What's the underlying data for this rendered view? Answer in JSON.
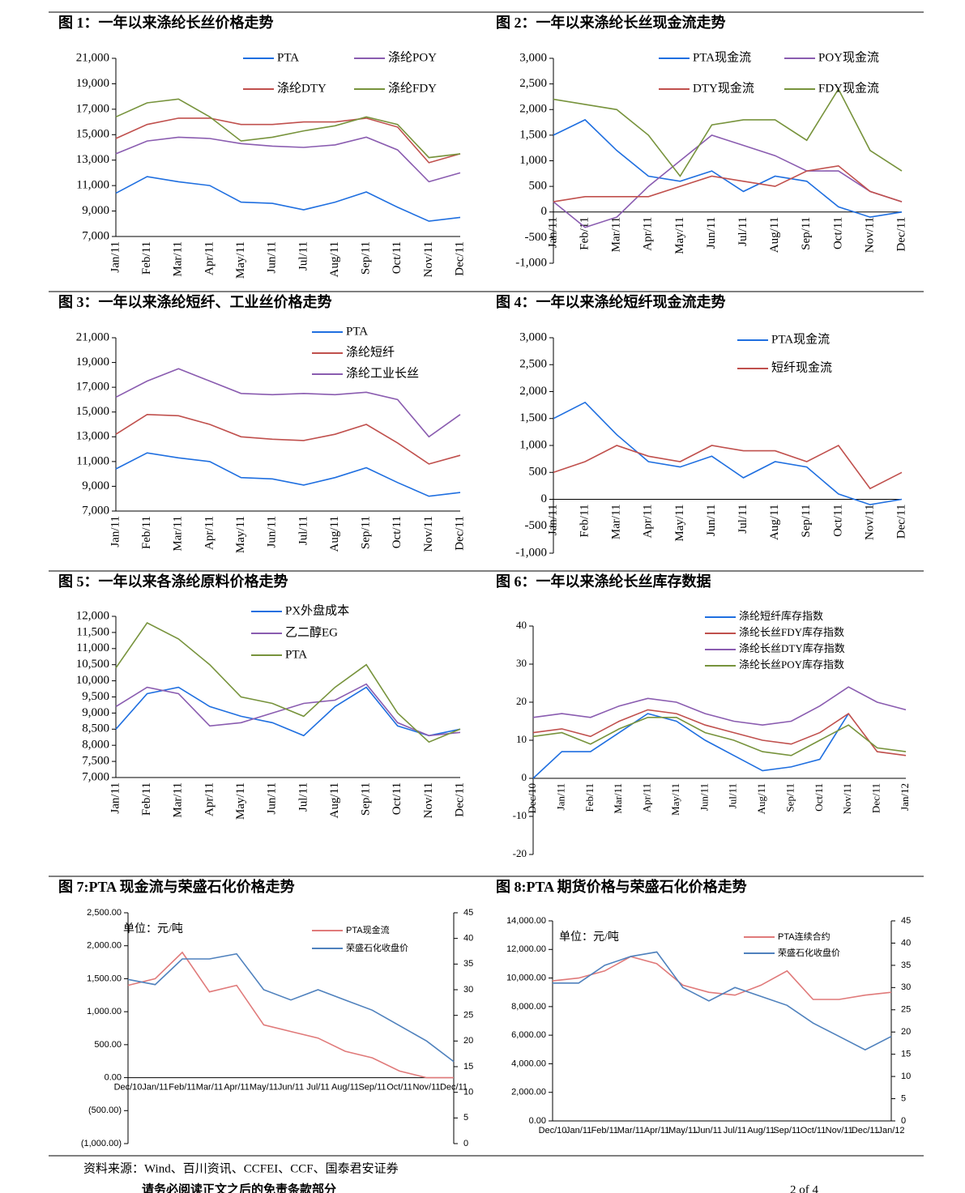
{
  "chart_data": [
    {
      "type": "line",
      "title": "图 1：一年以来涤纶长丝价格走势",
      "categories": [
        "Jan/11",
        "Feb/11",
        "Mar/11",
        "Apr/11",
        "May/11",
        "Jun/11",
        "Jul/11",
        "Aug/11",
        "Sep/11",
        "Oct/11",
        "Nov/11",
        "Dec/11"
      ],
      "ylim": [
        7000,
        21000
      ],
      "yticks": [
        {
          "value": 7000,
          "label": "7,000"
        },
        {
          "value": 9000,
          "label": "9,000"
        },
        {
          "value": 11000,
          "label": "11,000"
        },
        {
          "value": 13000,
          "label": "13,000"
        },
        {
          "value": 15000,
          "label": "15,000"
        },
        {
          "value": 17000,
          "label": "17,000"
        },
        {
          "value": 19000,
          "label": "19,000"
        },
        {
          "value": 21000,
          "label": "21,000"
        }
      ],
      "series": [
        {
          "name": "PTA",
          "color": "#1f6fe0",
          "values": [
            10400,
            11700,
            11300,
            11000,
            9700,
            9600,
            9100,
            9700,
            10500,
            9300,
            8200,
            8500
          ]
        },
        {
          "name": "涤纶POY",
          "color": "#8a5cb0",
          "values": [
            13500,
            14500,
            14800,
            14700,
            14300,
            14100,
            14000,
            14200,
            14800,
            13800,
            11300,
            12000
          ]
        },
        {
          "name": "涤纶DTY",
          "color": "#c0504d",
          "values": [
            14700,
            15800,
            16300,
            16300,
            15800,
            15800,
            16000,
            16000,
            16300,
            15600,
            12800,
            13500
          ]
        },
        {
          "name": "涤纶FDY",
          "color": "#77933c",
          "values": [
            16400,
            17500,
            17800,
            16400,
            14500,
            14800,
            15300,
            15700,
            16400,
            15800,
            13200,
            13500
          ]
        }
      ]
    },
    {
      "type": "line",
      "title": "图 2：一年以来涤纶长丝现金流走势",
      "categories": [
        "Jan/11",
        "Feb/11",
        "Mar/11",
        "Apr/11",
        "May/11",
        "Jun/11",
        "Jul/11",
        "Aug/11",
        "Sep/11",
        "Oct/11",
        "Nov/11",
        "Dec/11"
      ],
      "ylim": [
        -1000,
        3000
      ],
      "negative_tick_color": "#ff0000",
      "yticks": [
        {
          "value": -1000,
          "label": "-1,000"
        },
        -500,
        0,
        500,
        {
          "value": 1000,
          "label": "1,000"
        },
        {
          "value": 1500,
          "label": "1,500"
        },
        {
          "value": 2000,
          "label": "2,000"
        },
        {
          "value": 2500,
          "label": "2,500"
        },
        {
          "value": 3000,
          "label": "3,000"
        }
      ],
      "series": [
        {
          "name": "PTA现金流",
          "color": "#1f6fe0",
          "values": [
            1500,
            1800,
            1200,
            700,
            600,
            800,
            400,
            700,
            600,
            100,
            -100,
            0
          ]
        },
        {
          "name": "POY现金流",
          "color": "#8a5cb0",
          "values": [
            200,
            -300,
            -100,
            500,
            1000,
            1500,
            1300,
            1100,
            800,
            800,
            400,
            200
          ]
        },
        {
          "name": "DTY现金流",
          "color": "#c0504d",
          "values": [
            200,
            300,
            300,
            300,
            500,
            700,
            600,
            500,
            800,
            900,
            400,
            200
          ]
        },
        {
          "name": "FDY现金流",
          "color": "#77933c",
          "values": [
            2200,
            2100,
            2000,
            1500,
            700,
            1700,
            1800,
            1800,
            1400,
            2400,
            1200,
            800
          ]
        }
      ]
    },
    {
      "type": "line",
      "title": "图 3：一年以来涤纶短纤、工业丝价格走势",
      "categories": [
        "Jan/11",
        "Feb/11",
        "Mar/11",
        "Apr/11",
        "May/11",
        "Jun/11",
        "Jul/11",
        "Aug/11",
        "Sep/11",
        "Oct/11",
        "Nov/11",
        "Dec/11"
      ],
      "ylim": [
        7000,
        21000
      ],
      "yticks": [
        {
          "value": 7000,
          "label": "7,000"
        },
        {
          "value": 9000,
          "label": "9,000"
        },
        {
          "value": 11000,
          "label": "11,000"
        },
        {
          "value": 13000,
          "label": "13,000"
        },
        {
          "value": 15000,
          "label": "15,000"
        },
        {
          "value": 17000,
          "label": "17,000"
        },
        {
          "value": 19000,
          "label": "19,000"
        },
        {
          "value": 21000,
          "label": "21,000"
        }
      ],
      "series": [
        {
          "name": "PTA",
          "color": "#1f6fe0",
          "values": [
            10400,
            11700,
            11300,
            11000,
            9700,
            9600,
            9100,
            9700,
            10500,
            9300,
            8200,
            8500
          ]
        },
        {
          "name": "涤纶短纤",
          "color": "#c0504d",
          "values": [
            13200,
            14800,
            14700,
            14000,
            13000,
            12800,
            12700,
            13200,
            14000,
            12500,
            10800,
            11500
          ]
        },
        {
          "name": "涤纶工业长丝",
          "color": "#8a5cb0",
          "values": [
            16200,
            17500,
            18500,
            17500,
            16500,
            16400,
            16500,
            16400,
            16600,
            16000,
            13000,
            14800
          ]
        }
      ]
    },
    {
      "type": "line",
      "title": "图 4：一年以来涤纶短纤现金流走势",
      "categories": [
        "Jan/11",
        "Feb/11",
        "Mar/11",
        "Apr/11",
        "May/11",
        "Jun/11",
        "Jul/11",
        "Aug/11",
        "Sep/11",
        "Oct/11",
        "Nov/11",
        "Dec/11"
      ],
      "ylim": [
        -1000,
        3000
      ],
      "negative_tick_color": "#ff0000",
      "yticks": [
        {
          "value": -1000,
          "label": "-1,000"
        },
        -500,
        0,
        500,
        {
          "value": 1000,
          "label": "1,000"
        },
        {
          "value": 1500,
          "label": "1,500"
        },
        {
          "value": 2000,
          "label": "2,000"
        },
        {
          "value": 2500,
          "label": "2,500"
        },
        {
          "value": 3000,
          "label": "3,000"
        }
      ],
      "series": [
        {
          "name": "PTA现金流",
          "color": "#1f6fe0",
          "values": [
            1500,
            1800,
            1200,
            700,
            600,
            800,
            400,
            700,
            600,
            100,
            -100,
            0
          ]
        },
        {
          "name": "短纤现金流",
          "color": "#c0504d",
          "values": [
            500,
            700,
            1000,
            800,
            700,
            1000,
            900,
            900,
            700,
            1000,
            200,
            500
          ]
        }
      ]
    },
    {
      "type": "line",
      "title": "图 5：一年以来各涤纶原料价格走势",
      "categories": [
        "Jan/11",
        "Feb/11",
        "Mar/11",
        "Apr/11",
        "May/11",
        "Jun/11",
        "Jul/11",
        "Aug/11",
        "Sep/11",
        "Oct/11",
        "Nov/11",
        "Dec/11"
      ],
      "ylim": [
        7000,
        12000
      ],
      "yticks": [
        {
          "value": 7000,
          "label": "7,000"
        },
        {
          "value": 7500,
          "label": "7,500"
        },
        {
          "value": 8000,
          "label": "8,000"
        },
        {
          "value": 8500,
          "label": "8,500"
        },
        {
          "value": 9000,
          "label": "9,000"
        },
        {
          "value": 9500,
          "label": "9,500"
        },
        {
          "value": 10000,
          "label": "10,000"
        },
        {
          "value": 10500,
          "label": "10,500"
        },
        {
          "value": 11000,
          "label": "11,000"
        },
        {
          "value": 11500,
          "label": "11,500"
        },
        {
          "value": 12000,
          "label": "12,000"
        }
      ],
      "series": [
        {
          "name": "PX外盘成本",
          "color": "#1f6fe0",
          "values": [
            8500,
            9600,
            9800,
            9200,
            8900,
            8700,
            8300,
            9200,
            9800,
            8600,
            8300,
            8500
          ]
        },
        {
          "name": "乙二醇EG",
          "color": "#8a5cb0",
          "values": [
            9200,
            9800,
            9600,
            8600,
            8700,
            9000,
            9300,
            9400,
            9900,
            8700,
            8300,
            8400
          ]
        },
        {
          "name": "PTA",
          "color": "#77933c",
          "values": [
            10400,
            11800,
            11300,
            10500,
            9500,
            9300,
            8900,
            9800,
            10500,
            9000,
            8100,
            8500
          ]
        }
      ]
    },
    {
      "type": "line",
      "title": "图 6：一年以来涤纶长丝库存数据",
      "categories": [
        "Dec/10",
        "Jan/11",
        "Feb/11",
        "Mar/11",
        "Apr/11",
        "May/11",
        "Jun/11",
        "Jul/11",
        "Aug/11",
        "Sep/11",
        "Oct/11",
        "Nov/11",
        "Dec/11",
        "Jan/12"
      ],
      "ylim": [
        -20,
        40
      ],
      "negative_tick_color": "#ff0000",
      "yticks": [
        -20,
        -10,
        0,
        10,
        20,
        30,
        40
      ],
      "series": [
        {
          "name": "涤纶短纤库存指数",
          "color": "#1f6fe0",
          "values": [
            0,
            7,
            7,
            12,
            17,
            15,
            10,
            6,
            2,
            3,
            5,
            17,
            null,
            null
          ]
        },
        {
          "name": "涤纶长丝FDY库存指数",
          "color": "#c0504d",
          "values": [
            12,
            13,
            11,
            15,
            18,
            17,
            14,
            12,
            10,
            9,
            12,
            17,
            7,
            6
          ]
        },
        {
          "name": "涤纶长丝DTY库存指数",
          "color": "#8a5cb0",
          "values": [
            16,
            17,
            16,
            19,
            21,
            20,
            17,
            15,
            14,
            15,
            19,
            24,
            20,
            18
          ]
        },
        {
          "name": "涤纶长丝POY库存指数",
          "color": "#77933c",
          "values": [
            11,
            12,
            9,
            13,
            16,
            16,
            12,
            10,
            7,
            6,
            10,
            14,
            8,
            7
          ]
        }
      ]
    },
    {
      "type": "line",
      "title": "图 7:PTA 现金流与荣盛石化价格走势",
      "annotation": "单位：元/吨",
      "categories": [
        "Dec/10",
        "Jan/11",
        "Feb/11",
        "Mar/11",
        "Apr/11",
        "May/11",
        "Jun/11",
        "Jul/11",
        "Aug/11",
        "Sep/11",
        "Oct/11",
        "Nov/11",
        "Dec/11"
      ],
      "ylim": [
        -1000,
        2500
      ],
      "yticks": [
        {
          "value": -1000,
          "label": "(1,000.00)"
        },
        {
          "value": -500,
          "label": "(500.00)"
        },
        {
          "value": 0,
          "label": "0.00"
        },
        {
          "value": 500,
          "label": "500.00"
        },
        {
          "value": 1000,
          "label": "1,000.00"
        },
        {
          "value": 1500,
          "label": "1,500.00"
        },
        {
          "value": 2000,
          "label": "2,000.00"
        },
        {
          "value": 2500,
          "label": "2,500.00"
        }
      ],
      "y2lim": [
        0,
        45
      ],
      "y2ticks": [
        0,
        5,
        10,
        15,
        20,
        25,
        30,
        35,
        40,
        45
      ],
      "series": [
        {
          "name": "PTA现金流",
          "color": "#e07a7a",
          "values": [
            1400,
            1500,
            1900,
            1300,
            1400,
            800,
            700,
            600,
            400,
            300,
            100,
            0,
            0
          ]
        },
        {
          "name": "荣盛石化收盘价",
          "color": "#4f81bd",
          "axis": "y2",
          "values": [
            32,
            31,
            36,
            36,
            37,
            30,
            28,
            30,
            28,
            26,
            23,
            20,
            16
          ]
        }
      ]
    },
    {
      "type": "line",
      "title": "图 8:PTA 期货价格与荣盛石化价格走势",
      "annotation": "单位：元/吨",
      "categories": [
        "Dec/10",
        "Jan/11",
        "Feb/11",
        "Mar/11",
        "Apr/11",
        "May/11",
        "Jun/11",
        "Jul/11",
        "Aug/11",
        "Sep/11",
        "Oct/11",
        "Nov/11",
        "Dec/11",
        "Jan/12"
      ],
      "ylim": [
        0,
        14000
      ],
      "yticks": [
        {
          "value": 0,
          "label": "0.00"
        },
        {
          "value": 2000,
          "label": "2,000.00"
        },
        {
          "value": 4000,
          "label": "4,000.00"
        },
        {
          "value": 6000,
          "label": "6,000.00"
        },
        {
          "value": 8000,
          "label": "8,000.00"
        },
        {
          "value": 10000,
          "label": "10,000.00"
        },
        {
          "value": 12000,
          "label": "12,000.00"
        },
        {
          "value": 14000,
          "label": "14,000.00"
        }
      ],
      "y2lim": [
        0,
        45
      ],
      "y2ticks": [
        0,
        5,
        10,
        15,
        20,
        25,
        30,
        35,
        40,
        45
      ],
      "series": [
        {
          "name": "PTA连续合约",
          "color": "#e07a7a",
          "values": [
            9800,
            10000,
            10500,
            11500,
            11000,
            9500,
            9000,
            8800,
            9500,
            10500,
            8500,
            8500,
            8800,
            9000
          ]
        },
        {
          "name": "荣盛石化收盘价",
          "color": "#4f81bd",
          "axis": "y2",
          "values": [
            31,
            31,
            35,
            37,
            38,
            30,
            27,
            30,
            28,
            26,
            22,
            19,
            16,
            19
          ]
        }
      ]
    }
  ],
  "source": "资料来源：Wind、百川资讯、CCFEI、CCF、国泰君安证券",
  "footer": "请务必阅读正文之后的免责条款部分",
  "page_number": "2 of 4"
}
